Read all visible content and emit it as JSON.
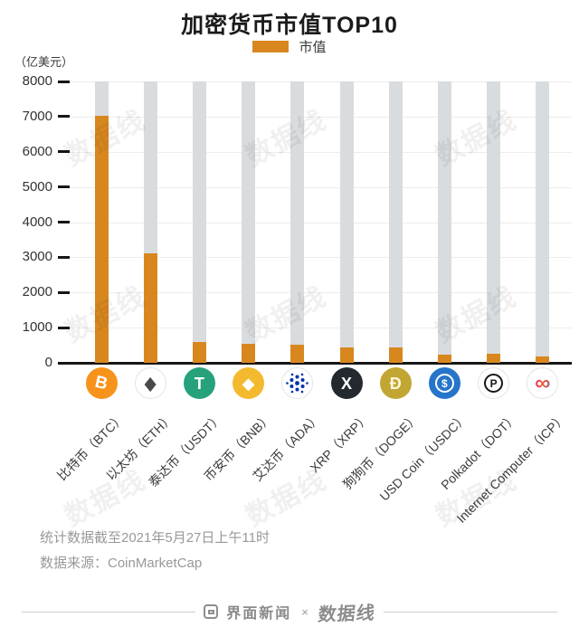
{
  "title": "加密货币市值TOP10",
  "legend": {
    "label": "市值",
    "swatch_color": "#d8871e"
  },
  "y_axis": {
    "unit": "（亿美元）"
  },
  "chart_data": {
    "type": "bar",
    "title": "加密货币市值TOP10",
    "ylabel": "（亿美元）",
    "ylim": [
      0,
      8000
    ],
    "y_step": 1000,
    "grid": true,
    "legend_entries": [
      "市值"
    ],
    "legend_position": "top",
    "bar_color": "#d8871e",
    "track_color": "#d8dcdf",
    "categories": [
      "比特币（BTC）",
      "以太坊（ETH）",
      "泰达币（USDT）",
      "币安币（BNB）",
      "艾达币（ADA）",
      "XRP（XRP）",
      "狗狗币（DOGE）",
      "USD Coin（USDC）",
      "Polkadot（DOT）",
      "Internet Computer（ICP）"
    ],
    "values": [
      7030,
      3110,
      600,
      535,
      520,
      450,
      430,
      230,
      250,
      190
    ],
    "icons": [
      {
        "name": "btc-icon",
        "bg": "#f7931a",
        "border": false,
        "type": "glyph",
        "glyph": "B",
        "fg": "#ffffff",
        "variant": "tilt"
      },
      {
        "name": "eth-icon",
        "bg": "#ffffff",
        "border": true,
        "type": "glyph",
        "glyph": "◆",
        "fg": "#4a4a4c",
        "variant": "tall"
      },
      {
        "name": "usdt-icon",
        "bg": "#26a17b",
        "border": false,
        "type": "glyph",
        "glyph": "T",
        "fg": "#ffffff"
      },
      {
        "name": "bnb-icon",
        "bg": "#f3ba2f",
        "border": false,
        "type": "glyph",
        "glyph": "◆",
        "fg": "#ffffff"
      },
      {
        "name": "ada-icon",
        "bg": "#ffffff",
        "border": true,
        "type": "dots",
        "fg": "#0033ad"
      },
      {
        "name": "xrp-icon",
        "bg": "#23292f",
        "border": false,
        "type": "glyph",
        "glyph": "X",
        "fg": "#ffffff"
      },
      {
        "name": "doge-icon",
        "bg": "#c2a633",
        "border": false,
        "type": "glyph",
        "glyph": "Ð",
        "fg": "#fff6d8"
      },
      {
        "name": "usdc-icon",
        "bg": "#2775ca",
        "border": false,
        "type": "ring-glyph",
        "glyph": "$",
        "fg": "#ffffff",
        "ring": "#ffffff"
      },
      {
        "name": "dot-icon",
        "bg": "#ffffff",
        "border": true,
        "type": "ring-glyph",
        "glyph": "P",
        "fg": "#161616",
        "ring": "#161616"
      },
      {
        "name": "icp-icon",
        "bg": "#ffffff",
        "border": true,
        "type": "infinity",
        "glyph": "∞"
      }
    ]
  },
  "watermark": {
    "text": "数据线"
  },
  "footnotes": [
    "统计数据截至2021年5月27日上午11时",
    "数据来源：CoinMarketCap"
  ],
  "footer": {
    "brand_left": "界面新闻",
    "separator": "×",
    "brand_right": "数据线"
  }
}
